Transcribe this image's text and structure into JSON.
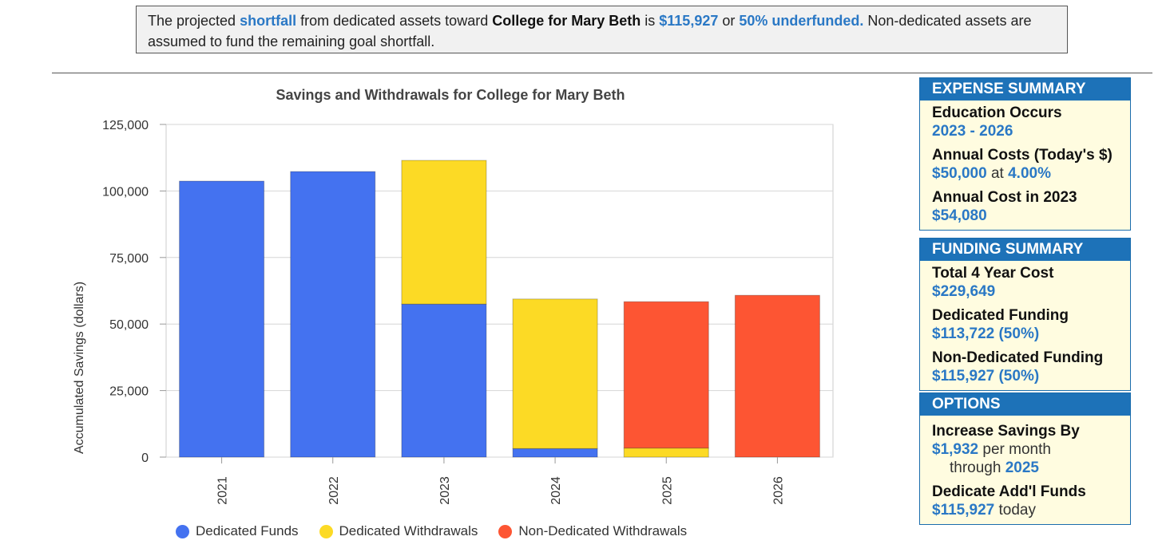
{
  "notice": {
    "t1": "The projected ",
    "shortfall": "shortfall",
    "t2": " from dedicated assets toward ",
    "goal": "College for Mary Beth",
    "t3": " is ",
    "amount": "$115,927",
    "t4": " or ",
    "pct": "50% underfunded.",
    "t5": " Non-dedicated assets are assumed to fund the remaining goal shortfall."
  },
  "colors": {
    "dedicated_funds": "#4472f0",
    "dedicated_withdrawals": "#fcda25",
    "non_dedicated_withdrawals": "#fd5533",
    "accent": "#1d72b8",
    "panel_bg": "#fffce0"
  },
  "chart_data": {
    "type": "bar",
    "stacked": true,
    "title": "Savings and Withdrawals for College for Mary Beth",
    "xlabel": "",
    "ylabel": "Accumulated Savings (dollars)",
    "ylim": [
      0,
      125000
    ],
    "yticks": [
      0,
      25000,
      50000,
      75000,
      100000,
      125000
    ],
    "ytick_labels": [
      "0",
      "25,000",
      "50,000",
      "75,000",
      "100,000",
      "125,000"
    ],
    "categories": [
      "2021",
      "2022",
      "2023",
      "2024",
      "2025",
      "2026"
    ],
    "series": [
      {
        "name": "Dedicated Funds",
        "color": "#4472f0",
        "values": [
          103700,
          107300,
          57500,
          3200,
          0,
          0
        ]
      },
      {
        "name": "Dedicated Withdrawals",
        "color": "#fcda25",
        "values": [
          0,
          0,
          54000,
          56200,
          3400,
          0
        ]
      },
      {
        "name": "Non-Dedicated Withdrawals",
        "color": "#fd5533",
        "values": [
          0,
          0,
          0,
          0,
          55000,
          60800
        ]
      }
    ],
    "grid": true,
    "legend_position": "bottom"
  },
  "expense": {
    "header": "EXPENSE SUMMARY",
    "occurs_label": "Education Occurs",
    "occurs_value": "2023 - 2026",
    "annual_label": "Annual Costs (Today's $)",
    "annual_amount": "$50,000",
    "annual_at": " at ",
    "annual_rate": "4.00%",
    "cost2023_label": "Annual Cost in 2023",
    "cost2023_value": "$54,080"
  },
  "funding": {
    "header": "FUNDING SUMMARY",
    "total_label": "Total 4 Year Cost",
    "total_value": "$229,649",
    "dedicated_label": "Dedicated Funding",
    "dedicated_value": "$113,722 (50%)",
    "nondedicated_label": "Non-Dedicated Funding",
    "nondedicated_value": "$115,927 (50%)"
  },
  "options": {
    "header": "OPTIONS",
    "increase_label": "Increase Savings By",
    "increase_amount": "$1,932",
    "increase_suffix": " per month",
    "through_prefix": "through ",
    "through_year": "2025",
    "dedicate_label": "Dedicate Add'l Funds",
    "dedicate_amount": "$115,927",
    "dedicate_suffix": " today"
  }
}
